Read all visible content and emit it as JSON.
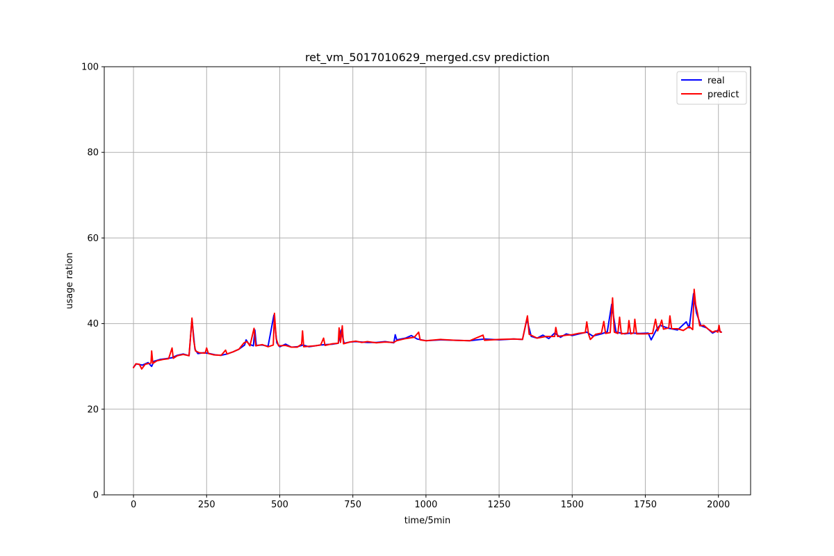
{
  "chart_data": {
    "type": "line",
    "title": "ret_vm_5017010629_merged.csv prediction",
    "xlabel": "time/5min",
    "ylabel": "usage ration",
    "xlim": [
      -100,
      2110
    ],
    "ylim": [
      0,
      100
    ],
    "xticks": [
      0,
      250,
      500,
      750,
      1000,
      1250,
      1500,
      1750,
      2000
    ],
    "yticks": [
      0,
      20,
      40,
      60,
      80,
      100
    ],
    "grid": true,
    "legend_position": "top-right",
    "series": [
      {
        "name": "real",
        "color": "#0000ff",
        "points": [
          [
            0,
            29.8
          ],
          [
            10,
            30.6
          ],
          [
            30,
            30.3
          ],
          [
            50,
            30.9
          ],
          [
            62,
            30.0
          ],
          [
            70,
            31.2
          ],
          [
            90,
            31.6
          ],
          [
            110,
            31.8
          ],
          [
            130,
            32.0
          ],
          [
            150,
            32.6
          ],
          [
            170,
            32.9
          ],
          [
            190,
            32.5
          ],
          [
            200,
            41.0
          ],
          [
            210,
            34.0
          ],
          [
            220,
            33.0
          ],
          [
            240,
            33.2
          ],
          [
            260,
            33.0
          ],
          [
            280,
            32.7
          ],
          [
            300,
            32.6
          ],
          [
            320,
            32.9
          ],
          [
            340,
            33.4
          ],
          [
            360,
            34.0
          ],
          [
            380,
            35.0
          ],
          [
            385,
            36.2
          ],
          [
            395,
            35.2
          ],
          [
            410,
            34.8
          ],
          [
            415,
            38.5
          ],
          [
            420,
            34.9
          ],
          [
            440,
            35.0
          ],
          [
            460,
            34.7
          ],
          [
            480,
            42.0
          ],
          [
            490,
            35.5
          ],
          [
            500,
            34.6
          ],
          [
            520,
            35.2
          ],
          [
            540,
            34.5
          ],
          [
            560,
            34.6
          ],
          [
            580,
            35.0
          ],
          [
            600,
            34.6
          ],
          [
            620,
            34.8
          ],
          [
            640,
            35.0
          ],
          [
            660,
            35.1
          ],
          [
            680,
            35.2
          ],
          [
            700,
            35.4
          ],
          [
            710,
            38.5
          ],
          [
            720,
            35.4
          ],
          [
            740,
            35.7
          ],
          [
            760,
            35.8
          ],
          [
            780,
            35.7
          ],
          [
            800,
            35.6
          ],
          [
            830,
            35.6
          ],
          [
            860,
            35.8
          ],
          [
            890,
            35.5
          ],
          [
            895,
            37.4
          ],
          [
            900,
            36.2
          ],
          [
            930,
            36.6
          ],
          [
            950,
            37.2
          ],
          [
            970,
            36.4
          ],
          [
            1000,
            36.0
          ],
          [
            1050,
            36.2
          ],
          [
            1100,
            36.1
          ],
          [
            1150,
            36.0
          ],
          [
            1200,
            36.4
          ],
          [
            1250,
            36.2
          ],
          [
            1300,
            36.4
          ],
          [
            1330,
            36.3
          ],
          [
            1345,
            41.0
          ],
          [
            1360,
            37.0
          ],
          [
            1380,
            36.6
          ],
          [
            1400,
            37.3
          ],
          [
            1420,
            36.5
          ],
          [
            1440,
            37.8
          ],
          [
            1460,
            36.8
          ],
          [
            1480,
            37.6
          ],
          [
            1500,
            37.2
          ],
          [
            1530,
            37.7
          ],
          [
            1550,
            38.0
          ],
          [
            1570,
            37.1
          ],
          [
            1600,
            37.6
          ],
          [
            1620,
            38.1
          ],
          [
            1635,
            44.5
          ],
          [
            1650,
            38.0
          ],
          [
            1680,
            37.6
          ],
          [
            1700,
            37.8
          ],
          [
            1730,
            37.7
          ],
          [
            1760,
            37.8
          ],
          [
            1770,
            36.2
          ],
          [
            1790,
            38.8
          ],
          [
            1800,
            39.6
          ],
          [
            1830,
            38.9
          ],
          [
            1860,
            38.5
          ],
          [
            1890,
            40.4
          ],
          [
            1900,
            39.0
          ],
          [
            1915,
            47.0
          ],
          [
            1925,
            42.5
          ],
          [
            1940,
            39.5
          ],
          [
            1960,
            39.0
          ],
          [
            1980,
            37.8
          ],
          [
            2000,
            38.5
          ],
          [
            2010,
            38.0
          ]
        ]
      },
      {
        "name": "predict",
        "color": "#ff0000",
        "points": [
          [
            0,
            29.7
          ],
          [
            8,
            30.6
          ],
          [
            20,
            30.5
          ],
          [
            28,
            29.4
          ],
          [
            40,
            30.5
          ],
          [
            60,
            30.8
          ],
          [
            62,
            33.6
          ],
          [
            66,
            30.7
          ],
          [
            80,
            31.3
          ],
          [
            100,
            31.6
          ],
          [
            120,
            31.8
          ],
          [
            132,
            34.3
          ],
          [
            136,
            31.9
          ],
          [
            150,
            32.5
          ],
          [
            170,
            32.8
          ],
          [
            190,
            32.5
          ],
          [
            200,
            41.3
          ],
          [
            206,
            36.0
          ],
          [
            212,
            33.6
          ],
          [
            225,
            33.2
          ],
          [
            245,
            33.1
          ],
          [
            250,
            34.3
          ],
          [
            256,
            33.0
          ],
          [
            275,
            32.7
          ],
          [
            300,
            32.6
          ],
          [
            315,
            33.8
          ],
          [
            320,
            32.9
          ],
          [
            340,
            33.4
          ],
          [
            360,
            34.0
          ],
          [
            378,
            35.5
          ],
          [
            388,
            35.8
          ],
          [
            398,
            34.8
          ],
          [
            412,
            38.9
          ],
          [
            418,
            34.8
          ],
          [
            440,
            35.1
          ],
          [
            460,
            34.6
          ],
          [
            478,
            35.0
          ],
          [
            482,
            42.4
          ],
          [
            488,
            36.5
          ],
          [
            496,
            34.8
          ],
          [
            520,
            34.9
          ],
          [
            540,
            34.5
          ],
          [
            560,
            34.5
          ],
          [
            575,
            35.2
          ],
          [
            578,
            38.3
          ],
          [
            582,
            34.6
          ],
          [
            600,
            34.7
          ],
          [
            620,
            34.8
          ],
          [
            640,
            35.0
          ],
          [
            650,
            36.6
          ],
          [
            655,
            34.9
          ],
          [
            680,
            35.3
          ],
          [
            700,
            35.4
          ],
          [
            703,
            39.0
          ],
          [
            708,
            35.6
          ],
          [
            714,
            39.5
          ],
          [
            718,
            35.3
          ],
          [
            740,
            35.7
          ],
          [
            760,
            35.9
          ],
          [
            780,
            35.6
          ],
          [
            800,
            35.8
          ],
          [
            830,
            35.5
          ],
          [
            860,
            35.7
          ],
          [
            890,
            35.6
          ],
          [
            900,
            36.0
          ],
          [
            930,
            36.5
          ],
          [
            960,
            36.8
          ],
          [
            975,
            38.0
          ],
          [
            980,
            36.2
          ],
          [
            1000,
            36.0
          ],
          [
            1050,
            36.3
          ],
          [
            1100,
            36.1
          ],
          [
            1150,
            36.0
          ],
          [
            1195,
            37.3
          ],
          [
            1200,
            36.1
          ],
          [
            1250,
            36.3
          ],
          [
            1300,
            36.4
          ],
          [
            1330,
            36.3
          ],
          [
            1347,
            41.8
          ],
          [
            1353,
            37.5
          ],
          [
            1380,
            36.6
          ],
          [
            1410,
            37.0
          ],
          [
            1440,
            37.0
          ],
          [
            1444,
            39.1
          ],
          [
            1450,
            37.0
          ],
          [
            1480,
            37.3
          ],
          [
            1500,
            37.4
          ],
          [
            1520,
            37.7
          ],
          [
            1545,
            37.9
          ],
          [
            1550,
            40.4
          ],
          [
            1556,
            37.5
          ],
          [
            1562,
            36.3
          ],
          [
            1580,
            37.5
          ],
          [
            1600,
            37.8
          ],
          [
            1608,
            40.5
          ],
          [
            1614,
            37.7
          ],
          [
            1630,
            37.9
          ],
          [
            1638,
            46.0
          ],
          [
            1644,
            38.0
          ],
          [
            1656,
            37.7
          ],
          [
            1662,
            41.5
          ],
          [
            1668,
            37.6
          ],
          [
            1690,
            37.8
          ],
          [
            1694,
            40.7
          ],
          [
            1700,
            37.6
          ],
          [
            1710,
            37.8
          ],
          [
            1714,
            41.0
          ],
          [
            1720,
            37.6
          ],
          [
            1750,
            37.6
          ],
          [
            1775,
            37.7
          ],
          [
            1785,
            41.0
          ],
          [
            1792,
            38.3
          ],
          [
            1800,
            39.5
          ],
          [
            1806,
            40.8
          ],
          [
            1812,
            38.7
          ],
          [
            1830,
            39.0
          ],
          [
            1834,
            41.8
          ],
          [
            1840,
            38.8
          ],
          [
            1860,
            38.8
          ],
          [
            1880,
            38.4
          ],
          [
            1900,
            39.3
          ],
          [
            1912,
            38.6
          ],
          [
            1917,
            48.0
          ],
          [
            1922,
            44.5
          ],
          [
            1928,
            42.6
          ],
          [
            1936,
            39.5
          ],
          [
            1950,
            39.6
          ],
          [
            1965,
            38.7
          ],
          [
            1980,
            38.0
          ],
          [
            1990,
            38.3
          ],
          [
            1998,
            38.0
          ],
          [
            2002,
            39.6
          ],
          [
            2006,
            38.0
          ],
          [
            2010,
            38.0
          ]
        ]
      }
    ]
  }
}
